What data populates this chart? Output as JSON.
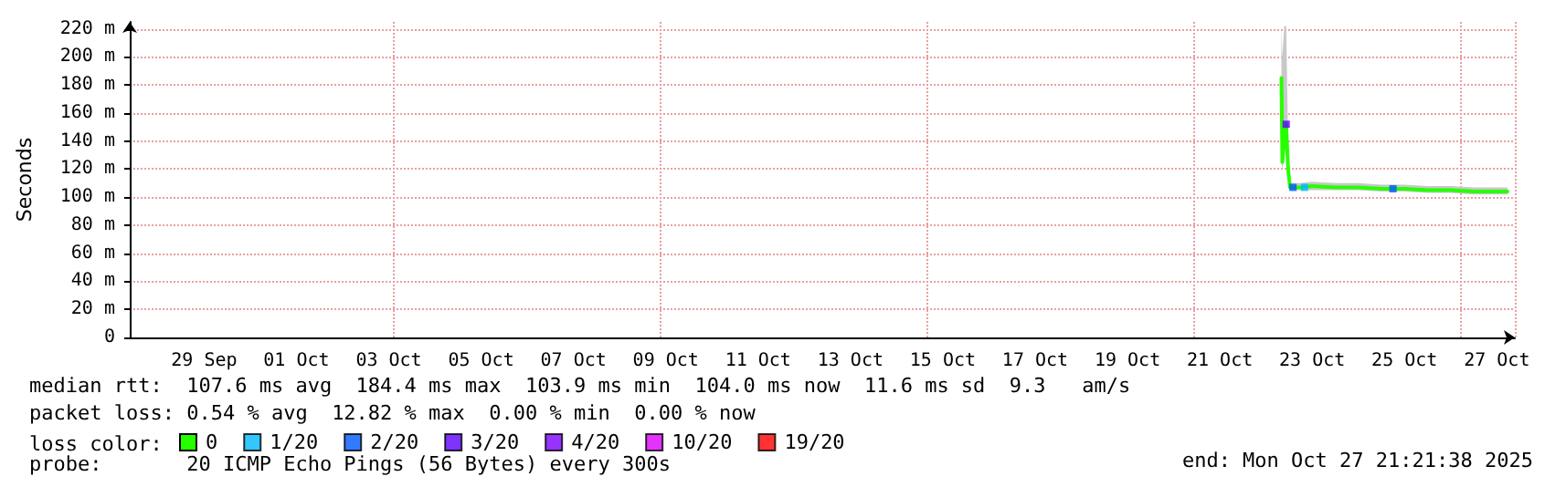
{
  "chart_data": {
    "type": "line",
    "ylabel": "Seconds",
    "xlim": [
      "2025-09-27T21:21",
      "2025-10-27T21:21"
    ],
    "xticks": [
      {
        "value": "2025-09-29T12:00",
        "label": "29 Sep"
      },
      {
        "value": "2025-10-01T12:00",
        "label": "01 Oct"
      },
      {
        "value": "2025-10-03T12:00",
        "label": "03 Oct"
      },
      {
        "value": "2025-10-05T12:00",
        "label": "05 Oct"
      },
      {
        "value": "2025-10-07T12:00",
        "label": "07 Oct"
      },
      {
        "value": "2025-10-09T12:00",
        "label": "09 Oct"
      },
      {
        "value": "2025-10-11T12:00",
        "label": "11 Oct"
      },
      {
        "value": "2025-10-13T12:00",
        "label": "13 Oct"
      },
      {
        "value": "2025-10-15T12:00",
        "label": "15 Oct"
      },
      {
        "value": "2025-10-17T12:00",
        "label": "17 Oct"
      },
      {
        "value": "2025-10-19T12:00",
        "label": "19 Oct"
      },
      {
        "value": "2025-10-21T12:00",
        "label": "21 Oct"
      },
      {
        "value": "2025-10-23T12:00",
        "label": "23 Oct"
      },
      {
        "value": "2025-10-25T12:00",
        "label": "25 Oct"
      },
      {
        "value": "2025-10-27T12:00",
        "label": "27 Oct"
      }
    ],
    "ylim": [
      0,
      225
    ],
    "yticks": [
      0,
      {
        "value": 20,
        "label": "20 m"
      },
      {
        "value": 40,
        "label": "40 m"
      },
      {
        "value": 60,
        "label": "60 m"
      },
      {
        "value": 80,
        "label": "80 m"
      },
      {
        "value": 100,
        "label": "100 m"
      },
      {
        "value": 120,
        "label": "120 m"
      },
      {
        "value": 140,
        "label": "140 m"
      },
      {
        "value": 160,
        "label": "160 m"
      },
      {
        "value": 180,
        "label": "180 m"
      },
      {
        "value": 200,
        "label": "200 m"
      },
      {
        "value": 220,
        "label": "220 m"
      }
    ],
    "grid": true,
    "legend": "bottom left",
    "legend_title": "loss color:",
    "series": [
      {
        "name": "0",
        "color": "#26ff00",
        "marker": "none",
        "x": [
          "2025-10-22T20:00",
          "2025-10-22T20:30",
          "2025-10-22T21:30",
          "2025-10-22T22:30",
          "2025-10-22T23:30",
          "2025-10-23T00:30",
          "2025-10-23T06:00",
          "2025-10-23T12:00",
          "2025-10-24T00:00",
          "2025-10-24T12:00",
          "2025-10-25T00:00",
          "2025-10-25T12:00",
          "2025-10-26T00:00",
          "2025-10-26T12:00",
          "2025-10-27T00:00",
          "2025-10-27T12:00",
          "2025-10-27T17:30"
        ],
        "values": [
          185,
          125,
          140,
          152,
          120,
          107,
          107,
          108,
          107,
          107,
          106,
          106,
          105,
          105,
          104,
          104,
          104
        ],
        "lower": [
          125,
          120,
          130,
          140,
          115,
          105,
          105,
          105,
          105,
          105,
          104,
          104,
          103,
          103,
          102,
          102,
          102
        ],
        "upper": [
          222,
          200,
          222,
          222,
          140,
          110,
          110,
          111,
          110,
          110,
          109,
          109,
          108,
          108,
          107,
          107,
          107
        ]
      },
      {
        "name": "1/20",
        "type": "scatter",
        "color": "#00b8ff",
        "marker": "square",
        "x": [
          "2025-10-23T08:00"
        ],
        "values": [
          107
        ]
      },
      {
        "name": "2/20",
        "type": "scatter",
        "color": "#0059ff",
        "marker": "square",
        "x": [
          "2025-10-23T02:00",
          "2025-10-25T06:00"
        ],
        "values": [
          107,
          106
        ]
      },
      {
        "name": "3/20",
        "type": "scatter",
        "color": "#5e00ff",
        "marker": "square",
        "x": [
          "2025-10-22T22:30"
        ],
        "values": [
          152
        ]
      },
      {
        "name": "4/20",
        "type": "scatter",
        "color": "#7e00ff",
        "marker": "square"
      },
      {
        "name": "10/20",
        "type": "scatter",
        "color": "#dd00ff",
        "marker": "square"
      },
      {
        "name": "19/20",
        "type": "scatter",
        "color": "#ff0000",
        "marker": "square"
      }
    ],
    "annotations": [
      "median rtt:  107.6 ms avg  184.4 ms max  103.9 ms min  104.0 ms now  11.6 ms sd  9.3   am/s",
      "packet loss: 0.54 % avg  12.82 % max  0.00 % min  0.00 % now",
      "probe:       20 ICMP Echo Pings (56 Bytes) every 300s",
      "end: Mon Oct 27 21:21:38 2025"
    ]
  }
}
